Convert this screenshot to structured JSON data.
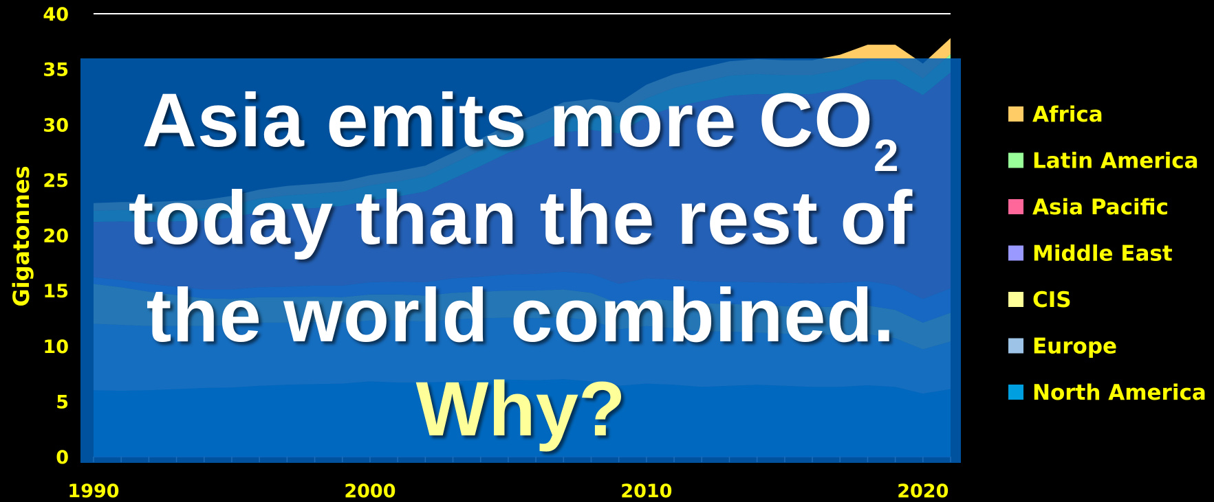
{
  "chart_data": {
    "type": "area",
    "stacked": true,
    "ylabel": "Gigatonnes",
    "xlabel": "",
    "ylim": [
      0,
      40
    ],
    "xlim": [
      1990,
      2021
    ],
    "y_ticks": [
      "0",
      "5",
      "10",
      "15",
      "20",
      "25",
      "30",
      "35",
      "40"
    ],
    "x_ticks": [
      "1990",
      "2000",
      "2010",
      "2020"
    ],
    "legend_position": "right",
    "x": [
      1990,
      1991,
      1992,
      1993,
      1994,
      1995,
      1996,
      1997,
      1998,
      1999,
      2000,
      2001,
      2002,
      2003,
      2004,
      2005,
      2006,
      2007,
      2008,
      2009,
      2010,
      2011,
      2012,
      2013,
      2014,
      2015,
      2016,
      2017,
      2018,
      2019,
      2020,
      2021
    ],
    "series": [
      {
        "name": "North America",
        "color": "#00a0e0",
        "values": [
          6.0,
          5.95,
          6.0,
          6.1,
          6.2,
          6.25,
          6.4,
          6.5,
          6.55,
          6.6,
          6.8,
          6.7,
          6.7,
          6.8,
          6.9,
          6.95,
          6.9,
          7.0,
          6.8,
          6.4,
          6.6,
          6.5,
          6.3,
          6.4,
          6.5,
          6.4,
          6.3,
          6.3,
          6.45,
          6.3,
          5.7,
          6.1
        ]
      },
      {
        "name": "Europe",
        "color": "#9dc3e6",
        "values": [
          6.0,
          5.95,
          5.8,
          5.7,
          5.6,
          5.6,
          5.7,
          5.6,
          5.6,
          5.5,
          5.5,
          5.6,
          5.5,
          5.6,
          5.6,
          5.6,
          5.6,
          5.6,
          5.5,
          5.1,
          5.2,
          5.1,
          5.0,
          4.9,
          4.7,
          4.7,
          4.7,
          4.7,
          4.6,
          4.4,
          4.0,
          4.3
        ]
      },
      {
        "name": "CIS",
        "color": "#ffff99",
        "values": [
          3.6,
          3.4,
          3.1,
          2.8,
          2.5,
          2.4,
          2.3,
          2.3,
          2.3,
          2.3,
          2.35,
          2.35,
          2.35,
          2.4,
          2.4,
          2.45,
          2.5,
          2.5,
          2.5,
          2.35,
          2.45,
          2.5,
          2.55,
          2.5,
          2.5,
          2.5,
          2.5,
          2.55,
          2.6,
          2.55,
          2.4,
          2.6
        ]
      },
      {
        "name": "Middle East",
        "color": "#9999ff",
        "values": [
          0.6,
          0.65,
          0.7,
          0.75,
          0.8,
          0.85,
          0.9,
          0.95,
          1.0,
          1.05,
          1.1,
          1.15,
          1.2,
          1.3,
          1.35,
          1.45,
          1.5,
          1.6,
          1.7,
          1.75,
          1.85,
          1.9,
          1.95,
          2.0,
          2.05,
          2.1,
          2.15,
          2.15,
          2.2,
          2.2,
          2.15,
          2.2
        ]
      },
      {
        "name": "Asia Pacific",
        "color": "#ff6699",
        "values": [
          5.0,
          5.3,
          5.6,
          5.9,
          6.2,
          6.5,
          6.8,
          7.0,
          7.0,
          7.2,
          7.4,
          7.7,
          8.2,
          9.0,
          10.0,
          11.0,
          11.8,
          12.6,
          13.0,
          13.6,
          14.6,
          15.6,
          16.3,
          16.8,
          17.0,
          17.0,
          17.1,
          17.5,
          18.2,
          18.6,
          18.4,
          19.5
        ]
      },
      {
        "name": "Latin America",
        "color": "#99ff99",
        "values": [
          1.0,
          1.02,
          1.05,
          1.08,
          1.1,
          1.15,
          1.2,
          1.25,
          1.3,
          1.3,
          1.35,
          1.35,
          1.35,
          1.35,
          1.4,
          1.45,
          1.5,
          1.55,
          1.6,
          1.55,
          1.65,
          1.7,
          1.75,
          1.8,
          1.8,
          1.75,
          1.7,
          1.7,
          1.7,
          1.7,
          1.5,
          1.65
        ]
      },
      {
        "name": "Africa",
        "color": "#ffcc66",
        "values": [
          0.7,
          0.72,
          0.74,
          0.76,
          0.78,
          0.8,
          0.82,
          0.85,
          0.88,
          0.9,
          0.92,
          0.95,
          0.98,
          1.0,
          1.05,
          1.1,
          1.1,
          1.15,
          1.2,
          1.2,
          1.25,
          1.25,
          1.28,
          1.3,
          1.35,
          1.35,
          1.35,
          1.4,
          1.45,
          1.45,
          1.35,
          1.45
        ]
      }
    ]
  },
  "overlay": {
    "line1": "Asia emits more CO",
    "subscript": "2",
    "line2": "today than the rest of",
    "line3": "the world combined.",
    "question": "Why?"
  },
  "colors": {
    "axis_label": "#ffff00",
    "overlay_fill": "#005fb9",
    "question_text": "#ffff99",
    "headline_text": "#ffffff"
  }
}
